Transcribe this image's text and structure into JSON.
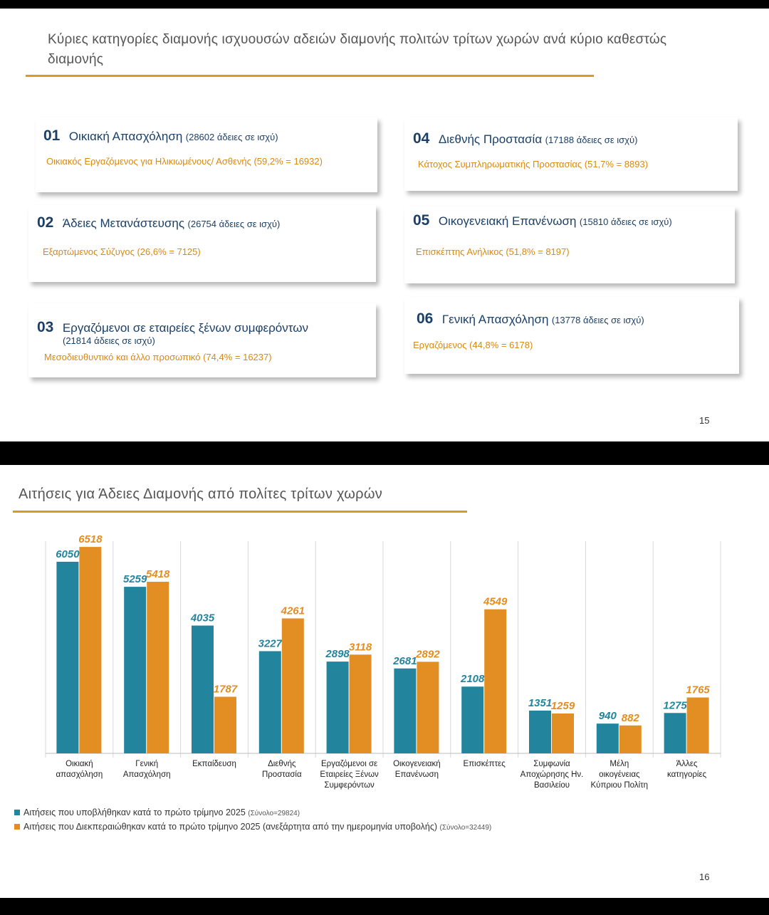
{
  "slide1": {
    "title": "Κύριες κατηγορίες διαμονής ισχυουσών αδειών διαμονής πολιτών τρίτων χωρών ανά κύριο καθεστώς διαμονής",
    "page_number": "15",
    "cards": [
      {
        "num": "01",
        "category": "Οικιακή Απασχόληση",
        "count": "(28602 άδειες σε ισχύ)",
        "sub": "Οικιακός Εργαζόμενος για Ηλικιωμένους/ Ασθενής (59,2% = 16932)"
      },
      {
        "num": "02",
        "category": "Άδειες Μετανάστευσης",
        "count": "(26754 άδειες σε ισχύ)",
        "sub": "Εξαρτώμενος Σύζυγος (26,6% = 7125)"
      },
      {
        "num": "03",
        "category": "Εργαζόμενοι σε εταιρείες ξένων συμφερόντων",
        "count": "(21814 άδειες σε ισχύ)",
        "sub": "Μεσοδιευθυντικό και άλλο προσωπικό (74,4% = 16237)"
      },
      {
        "num": "04",
        "category": "Διεθνής Προστασία",
        "count": "(17188 άδειες σε ισχύ)",
        "sub": "Κάτοχος Συμπληρωματικής Προστασίας (51,7% = 8893)"
      },
      {
        "num": "05",
        "category": "Οικογενειακή Επανένωση",
        "count": "(15810 άδειες σε ισχύ)",
        "sub": "Επισκέπτης Ανήλικος (51,8% = 8197)"
      },
      {
        "num": "06",
        "category": "Γενική Απασχόληση",
        "count": "(13778 άδειες σε ισχύ)",
        "sub": "Εργαζόμενος (44,8% = 6178)"
      }
    ]
  },
  "slide2": {
    "title": "Αιτήσεις για Άδειες Διαμονής από πολίτες τρίτων χωρών",
    "page_number": "16",
    "legend": [
      {
        "label": "Αιτήσεις που υποβλήθηκαν κατά το πρώτο τρίμηνο 2025",
        "total": "(Σύνολο=29824)",
        "color": "#23849E"
      },
      {
        "label": "Αιτήσεις που Διεκπεραιώθηκαν κατά το πρώτο τρίμηνο 2025 (ανεξάρτητα από την ημερομηνία υποβολής)",
        "total": "(Σύνολο=32449)",
        "color": "#E38E22"
      }
    ]
  },
  "chart_data": {
    "type": "bar",
    "categories": [
      [
        "Οικιακή",
        "απασχόληση"
      ],
      [
        "Γενική",
        "Απασχόληση"
      ],
      [
        "Εκπαίδευση"
      ],
      [
        "Διεθνής",
        "Προστασία"
      ],
      [
        "Εργαζόμενοι σε",
        "Εταιρείες Ξένων",
        "Συμφερόντων"
      ],
      [
        "Οικογενειακή",
        "Επανένωση"
      ],
      [
        "Επισκέπτες"
      ],
      [
        "Συμφωνία",
        "Αποχώρησης Ην.",
        "Βασιλείου"
      ],
      [
        "Μέλη",
        "οικογένειας",
        "Κύπριου Πολίτη"
      ],
      [
        "Άλλες",
        "κατηγορίες"
      ]
    ],
    "series": [
      {
        "name": "Αιτήσεις που υποβλήθηκαν κατά το πρώτο τρίμηνο 2025",
        "values": [
          6050,
          5259,
          4035,
          3227,
          2898,
          2681,
          2108,
          1351,
          940,
          1275
        ],
        "color": "#23849E"
      },
      {
        "name": "Αιτήσεις που Διεκπεραιώθηκαν κατά το πρώτο τρίμηνο 2025 (ανεξάρτητα από την ημερομηνία υποβολής)",
        "values": [
          6518,
          5418,
          1787,
          4261,
          3118,
          2892,
          4549,
          1259,
          882,
          1765
        ],
        "color": "#E38E22"
      }
    ],
    "ylim": [
      0,
      6700
    ],
    "grid": true,
    "legend_position": "bottom-left"
  }
}
